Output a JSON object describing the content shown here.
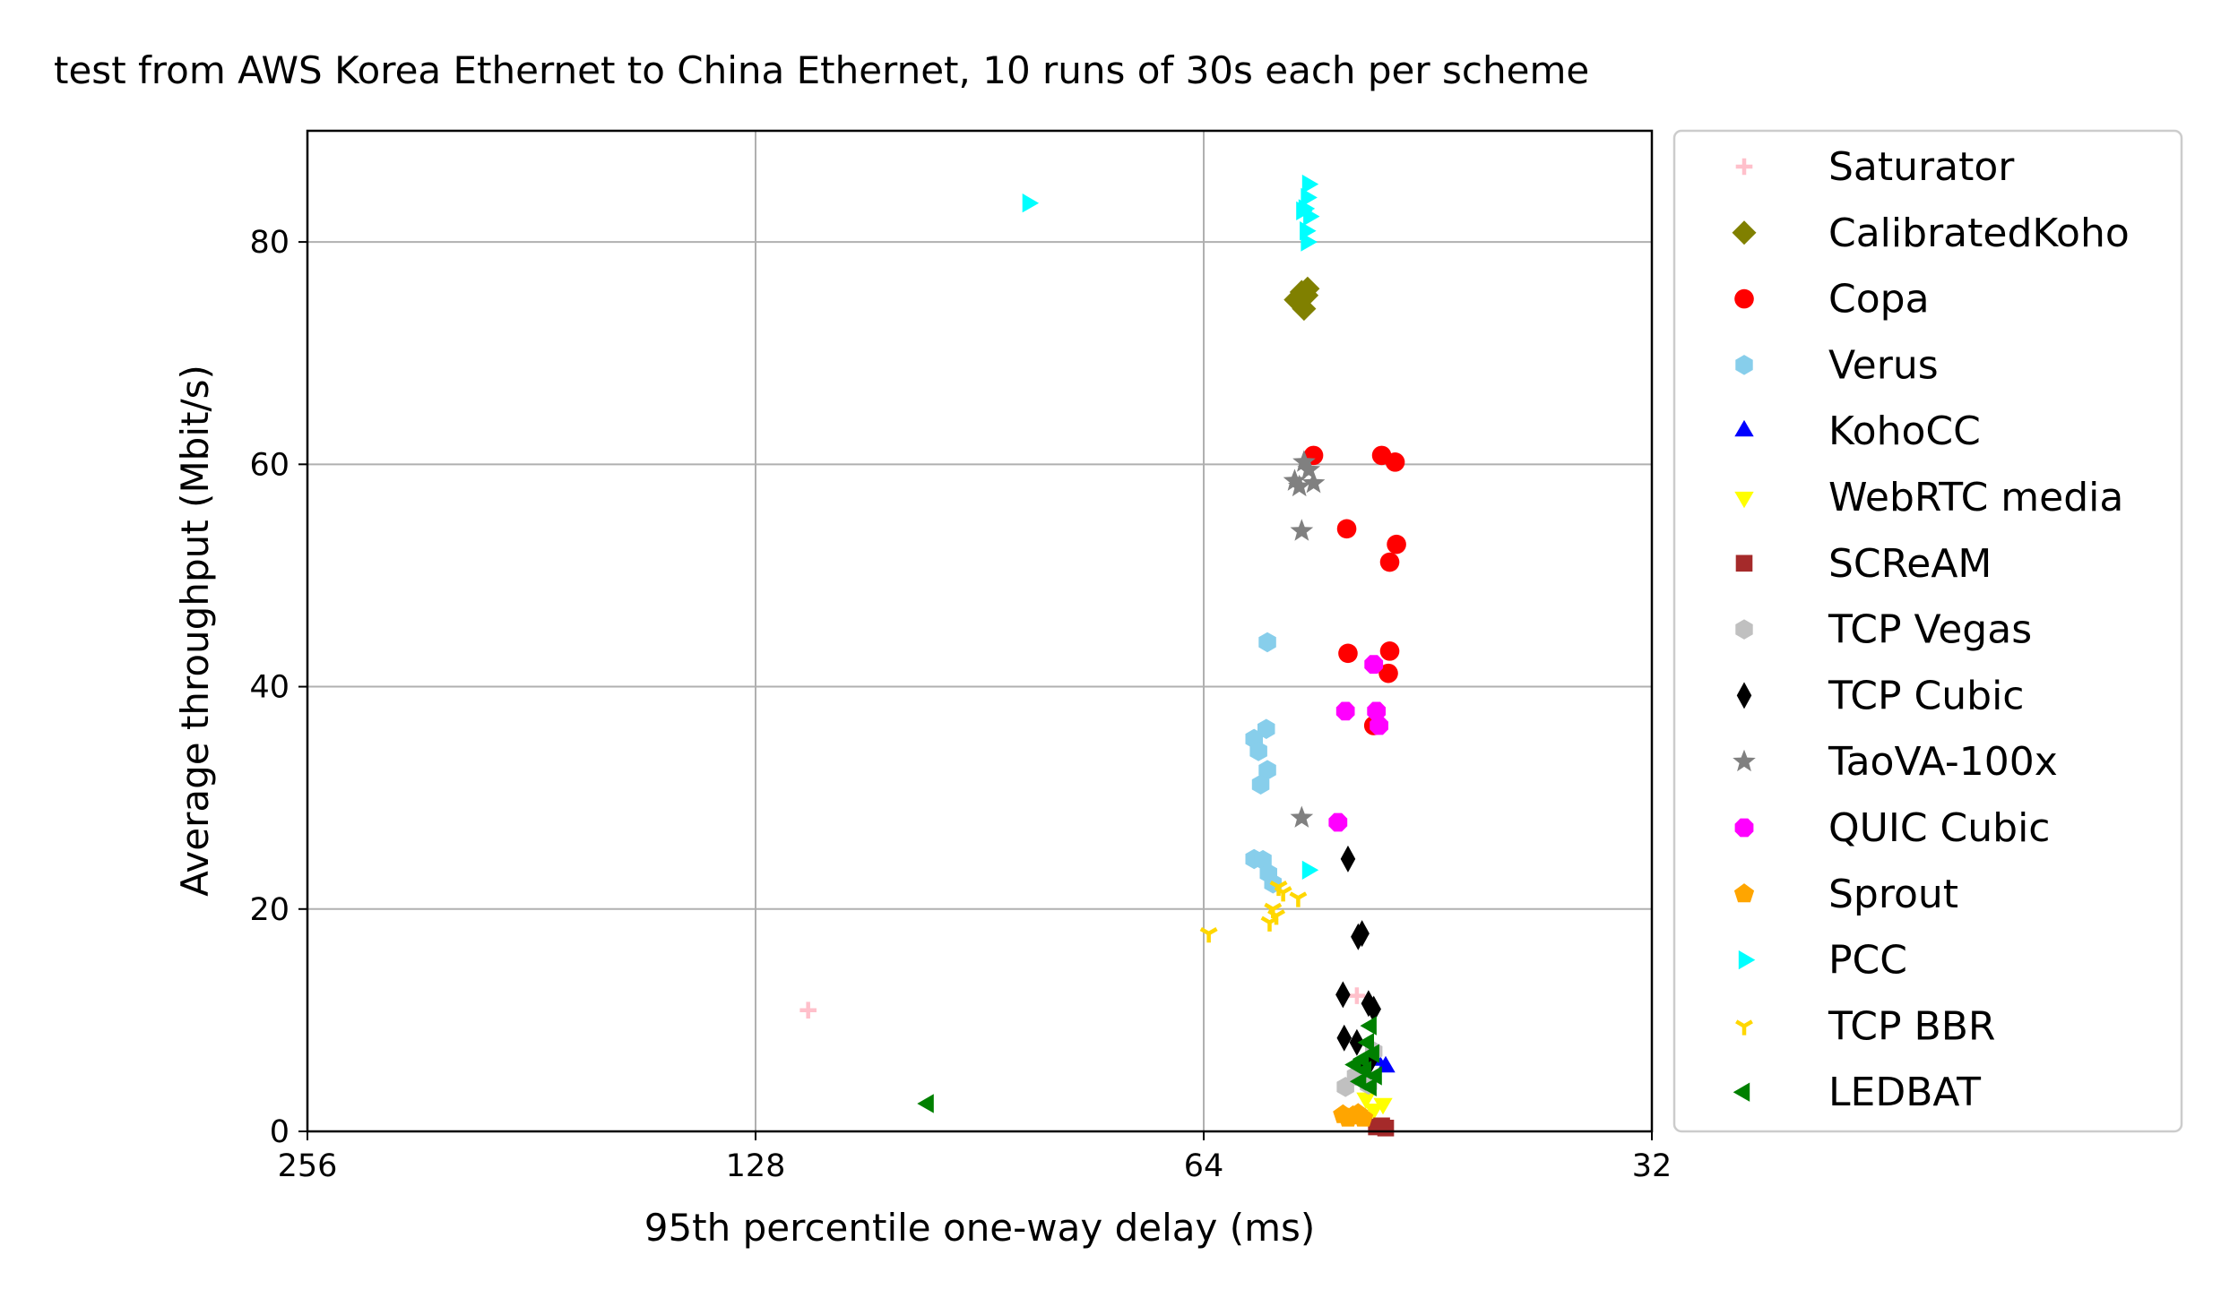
{
  "chart_data": {
    "type": "scatter",
    "title": "test from AWS Korea Ethernet to China Ethernet, 10 runs of 30s each per scheme",
    "xlabel": "95th percentile one-way delay (ms)",
    "ylabel": "Average throughput (Mbit/s)",
    "x_scale": "log2",
    "x_inverted": true,
    "xlim": [
      256,
      32
    ],
    "ylim": [
      0,
      90
    ],
    "x_ticks": [
      {
        "value": 256,
        "label": "256"
      },
      {
        "value": 128,
        "label": "128"
      },
      {
        "value": 64,
        "label": "64"
      },
      {
        "value": 32,
        "label": "32"
      }
    ],
    "y_ticks": [
      {
        "value": 0,
        "label": "0"
      },
      {
        "value": 20,
        "label": "20"
      },
      {
        "value": 40,
        "label": "40"
      },
      {
        "value": 60,
        "label": "60"
      },
      {
        "value": 80,
        "label": "80"
      }
    ],
    "grid": true,
    "legend_position": "outside-right",
    "series": [
      {
        "name": "Saturator",
        "color": "#ffc0cb",
        "marker": "plus",
        "points": [
          [
            118,
            10.9
          ],
          [
            50.5,
            12.2
          ]
        ]
      },
      {
        "name": "CalibratedKoho",
        "color": "#808000",
        "marker": "diamond",
        "points": [
          [
            55.5,
            74.8
          ],
          [
            54.5,
            75.8
          ],
          [
            54.8,
            74.0
          ],
          [
            54.6,
            75.2
          ],
          [
            55.0,
            75.5
          ]
        ]
      },
      {
        "name": "Copa",
        "color": "#ff0000",
        "marker": "circle",
        "points": [
          [
            54.0,
            60.8
          ],
          [
            48.6,
            60.8
          ],
          [
            47.6,
            60.2
          ],
          [
            51.3,
            54.2
          ],
          [
            47.5,
            52.8
          ],
          [
            48.0,
            51.2
          ],
          [
            51.2,
            43.0
          ],
          [
            48.0,
            43.2
          ],
          [
            48.1,
            41.2
          ],
          [
            49.2,
            36.5
          ]
        ]
      },
      {
        "name": "Verus",
        "color": "#87ceeb",
        "marker": "hexagon",
        "points": [
          [
            58.0,
            44.0
          ],
          [
            59.2,
            35.3
          ],
          [
            58.1,
            36.2
          ],
          [
            58.8,
            34.2
          ],
          [
            58.0,
            32.5
          ],
          [
            58.6,
            31.2
          ],
          [
            59.2,
            24.5
          ],
          [
            58.4,
            24.4
          ],
          [
            57.9,
            23.2
          ],
          [
            57.5,
            22.3
          ]
        ]
      },
      {
        "name": "KohoCC",
        "color": "#0000ff",
        "marker": "triangle-up",
        "points": [
          [
            48.3,
            5.8
          ],
          [
            49.0,
            6.4
          ]
        ]
      },
      {
        "name": "WebRTC media",
        "color": "#ffff00",
        "marker": "triangle-down",
        "points": [
          [
            48.5,
            2.5
          ],
          [
            49.2,
            2.0
          ],
          [
            49.8,
            3.0
          ]
        ]
      },
      {
        "name": "SCReAM",
        "color": "#a52a2a",
        "marker": "square",
        "points": [
          [
            48.3,
            0.3
          ],
          [
            49.0,
            0.4
          ],
          [
            48.6,
            0.5
          ]
        ]
      },
      {
        "name": "TCP Vegas",
        "color": "#c0c0c0",
        "marker": "hexagon",
        "points": [
          [
            51.4,
            4.0
          ],
          [
            49.2,
            7.2
          ],
          [
            50.6,
            5.0
          ],
          [
            49.6,
            4.2
          ]
        ]
      },
      {
        "name": "TCP Cubic",
        "color": "#000000",
        "marker": "thin-diamond",
        "points": [
          [
            51.2,
            24.5
          ],
          [
            50.4,
            17.5
          ],
          [
            50.1,
            17.8
          ],
          [
            51.6,
            12.3
          ],
          [
            49.6,
            11.5
          ],
          [
            49.2,
            11.0
          ],
          [
            51.5,
            8.4
          ],
          [
            50.5,
            8.0
          ],
          [
            49.4,
            6.5
          ],
          [
            49.8,
            6.0
          ]
        ]
      },
      {
        "name": "TaoVA-100x",
        "color": "#808080",
        "marker": "star",
        "points": [
          [
            55.2,
            58.0
          ],
          [
            54.4,
            59.5
          ],
          [
            54.8,
            60.2
          ],
          [
            55.6,
            58.5
          ],
          [
            54.0,
            58.3
          ],
          [
            55.0,
            54.0
          ],
          [
            55.0,
            28.2
          ]
        ]
      },
      {
        "name": "QUIC Cubic",
        "color": "#ff00ff",
        "marker": "octagon",
        "points": [
          [
            49.2,
            42.0
          ],
          [
            51.4,
            37.8
          ],
          [
            49.0,
            37.8
          ],
          [
            48.8,
            36.5
          ],
          [
            52.0,
            27.8
          ]
        ]
      },
      {
        "name": "Sprout",
        "color": "#ffa500",
        "marker": "pentagon",
        "points": [
          [
            51.6,
            1.5
          ],
          [
            50.8,
            1.4
          ],
          [
            51.2,
            1.2
          ],
          [
            50.0,
            1.2
          ],
          [
            50.4,
            1.6
          ]
        ]
      },
      {
        "name": "PCC",
        "color": "#00ffff",
        "marker": "triangle-right",
        "points": [
          [
            84.0,
            83.5
          ],
          [
            54.5,
            85.2
          ],
          [
            54.6,
            84.0
          ],
          [
            54.8,
            83.0
          ],
          [
            54.4,
            82.3
          ],
          [
            54.7,
            81.0
          ],
          [
            54.6,
            80.0
          ],
          [
            55.0,
            82.8
          ],
          [
            54.5,
            23.5
          ]
        ]
      },
      {
        "name": "TCP BBR",
        "color": "#ffd700",
        "marker": "tri-down",
        "points": [
          [
            63.5,
            17.8
          ],
          [
            57.0,
            22.0
          ],
          [
            56.6,
            21.5
          ],
          [
            55.3,
            21.0
          ],
          [
            57.5,
            20.0
          ],
          [
            57.8,
            18.8
          ],
          [
            57.2,
            19.4
          ]
        ]
      },
      {
        "name": "LEDBAT",
        "color": "#008000",
        "marker": "triangle-left",
        "points": [
          [
            98.0,
            2.5
          ],
          [
            49.4,
            9.5
          ],
          [
            49.6,
            8.0
          ],
          [
            49.2,
            7.0
          ],
          [
            50.0,
            6.5
          ],
          [
            49.8,
            5.5
          ],
          [
            50.2,
            4.5
          ],
          [
            49.4,
            4.0
          ],
          [
            50.6,
            6.0
          ],
          [
            49.0,
            5.0
          ]
        ]
      }
    ]
  }
}
